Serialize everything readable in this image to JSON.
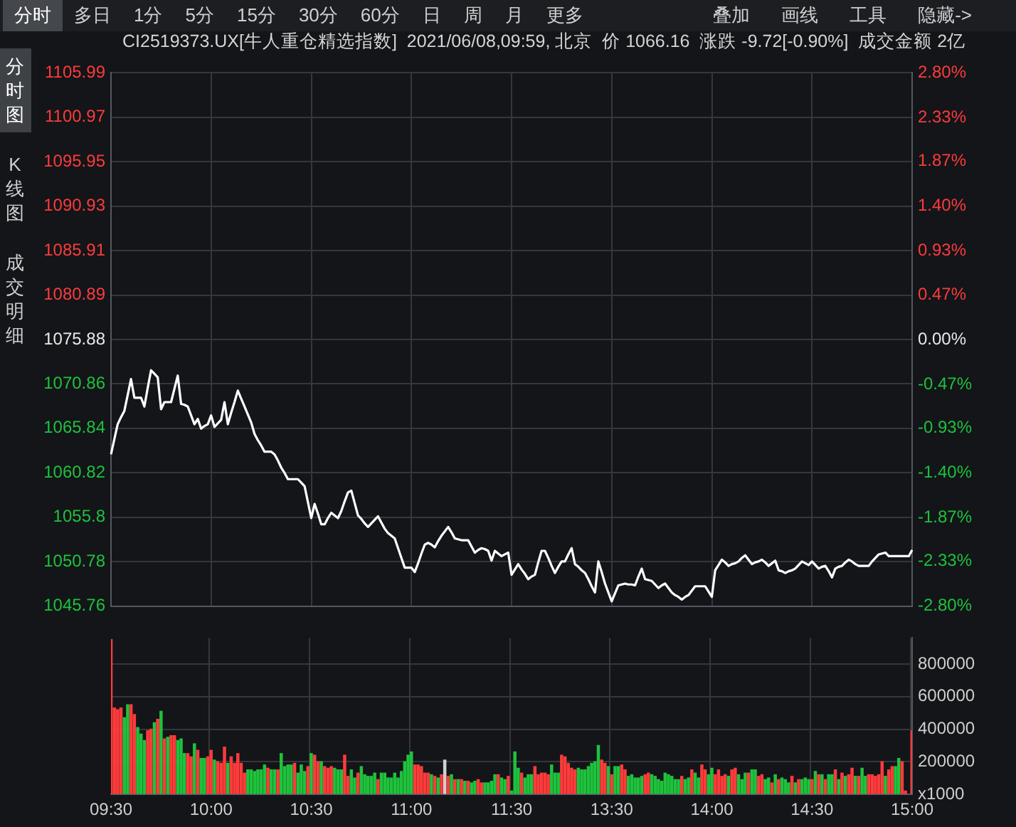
{
  "chart_data": [
    {
      "type": "line",
      "title": "CI2519373.UX[牛人重仓精选指数]  2021/06/08,09:59, 北京  价 1066.16  涨跌 -9.72[-0.90%]  成交金额 2亿",
      "categories": [
        null,
        null,
        null,
        null,
        null,
        null,
        null,
        null,
        null,
        null,
        null,
        null,
        null,
        null,
        null,
        null,
        null,
        null,
        null,
        null,
        null,
        null,
        null,
        null,
        null,
        null,
        null,
        null,
        null,
        null,
        null,
        null,
        null,
        null,
        null,
        null,
        null,
        null,
        null,
        null,
        null,
        null,
        null,
        null,
        null,
        null,
        null,
        null,
        null,
        null,
        null,
        null,
        null,
        null,
        null,
        null,
        null,
        null,
        null,
        null,
        null,
        null,
        null,
        null,
        null,
        null,
        null,
        null,
        null,
        null,
        null,
        null,
        null,
        null,
        null,
        null,
        null,
        null,
        null,
        null,
        null,
        null,
        null,
        null,
        null,
        null,
        null,
        null,
        null,
        null,
        null,
        null,
        null,
        null,
        null,
        null,
        null,
        null,
        null,
        null,
        null,
        null,
        null,
        null,
        null,
        null,
        null,
        null,
        null,
        null,
        null,
        null,
        null,
        null,
        null,
        null,
        null,
        null,
        null,
        null,
        null,
        null,
        null,
        null,
        null,
        null,
        null,
        null,
        null,
        null,
        null,
        null,
        null,
        null,
        null,
        null,
        null,
        null,
        null,
        null,
        null,
        null,
        null,
        null,
        null,
        null,
        null,
        null,
        null,
        null,
        null,
        null,
        null,
        null,
        null,
        null,
        null,
        null,
        null,
        null,
        null,
        null,
        null,
        null,
        null,
        null,
        null,
        null,
        null,
        null,
        null,
        null,
        null,
        null,
        null,
        null,
        null,
        null,
        null,
        null,
        null,
        null,
        null,
        null,
        null,
        null,
        null,
        null,
        null,
        null,
        null,
        null,
        null,
        null,
        null,
        null,
        null,
        null,
        null,
        null,
        null,
        null,
        null,
        null,
        null,
        null,
        null,
        null,
        null,
        null,
        null,
        null,
        null,
        null,
        null,
        null,
        null,
        null,
        null,
        null,
        null,
        null,
        null,
        null,
        null,
        null,
        null,
        null,
        null,
        null,
        null,
        null,
        null,
        null,
        null,
        null,
        null,
        null,
        null,
        null,
        null
      ],
      "series": [
        {
          "color": "#ffffff",
          "values": [
            1062.9,
            1064.6,
            1066.3,
            1067.1,
            1067.8,
            1069.6,
            1071.4,
            1069.3,
            1069.3,
            1069.3,
            1068.3,
            1070.4,
            1072.4,
            1072.0,
            1071.6,
            1068.0,
            1068.8,
            1068.8,
            1068.8,
            1070.3,
            1071.8,
            1068.6,
            1068.5,
            1068.3,
            1067.3,
            1066.3,
            1066.9,
            1065.8,
            1066.1,
            1066.3,
            1067.3,
            1066.0,
            1066.4,
            1066.8,
            1068.8,
            1066.3,
            1067.6,
            1068.8,
            1070.1,
            1069.2,
            1068.3,
            1067.4,
            1066.5,
            1065.2,
            1064.5,
            1063.9,
            1063.2,
            1063.2,
            1063.2,
            1062.9,
            1062.2,
            1061.4,
            1060.8,
            1060.1,
            1060.1,
            1060.1,
            1060.1,
            1059.7,
            1059.3,
            1057.5,
            1055.7,
            1057.3,
            1056.2,
            1055.0,
            1055.0,
            1055.7,
            1056.3,
            1056.0,
            1055.7,
            1056.5,
            1057.6,
            1058.6,
            1058.8,
            1057.4,
            1056.0,
            1055.6,
            1055.1,
            1054.7,
            1055.1,
            1055.5,
            1055.9,
            1055.2,
            1054.5,
            1054.0,
            1053.7,
            1053.4,
            1052.3,
            1051.2,
            1050.1,
            1050.1,
            1050.1,
            1049.6,
            1050.6,
            1051.7,
            1052.7,
            1052.9,
            1052.7,
            1052.4,
            1053.1,
            1053.7,
            1054.2,
            1054.7,
            1054.1,
            1053.4,
            1053.3,
            1053.2,
            1053.2,
            1053.2,
            1052.5,
            1051.8,
            1052.1,
            1052.3,
            1052.2,
            1052.0,
            1050.9,
            1052.0,
            1051.7,
            1051.4,
            1051.6,
            1051.8,
            1049.3,
            1049.9,
            1050.5,
            1049.9,
            1049.4,
            1048.8,
            1049.1,
            1049.3,
            1050.7,
            1052.0,
            1052.0,
            1051.2,
            1050.3,
            1049.5,
            1050.2,
            1050.8,
            1050.8,
            1051.6,
            1052.3,
            1050.5,
            1050.2,
            1049.8,
            1049.5,
            1048.8,
            1048.0,
            1047.3,
            1050.8,
            1049.6,
            1048.3,
            1047.3,
            1046.3,
            1047.2,
            1048.1,
            1048.2,
            1048.3,
            1048.2,
            1048.2,
            1048.1,
            1049.1,
            1050.0,
            1048.8,
            1048.7,
            1048.6,
            1048.2,
            1047.8,
            1048.1,
            1048.3,
            1047.8,
            1047.3,
            1047.0,
            1046.8,
            1046.5,
            1046.8,
            1047.0,
            1047.5,
            1048.0,
            1048.0,
            1048.0,
            1048.0,
            1047.4,
            1046.8,
            1049.8,
            1050.4,
            1051.0,
            1050.7,
            1050.3,
            1050.5,
            1050.6,
            1050.8,
            1051.2,
            1051.5,
            1051.0,
            1050.5,
            1050.7,
            1050.8,
            1051.0,
            1050.7,
            1050.3,
            1050.6,
            1050.9,
            1049.8,
            1049.7,
            1049.5,
            1049.7,
            1049.8,
            1050.0,
            1050.4,
            1050.8,
            1050.6,
            1050.4,
            1050.8,
            1050.4,
            1050.0,
            1050.2,
            1050.3,
            1049.7,
            1049.0,
            1050.0,
            1050.2,
            1050.3,
            1050.7,
            1051.0,
            1050.8,
            1050.5,
            1050.3,
            1050.3,
            1050.3,
            1050.3,
            1050.8,
            1051.2,
            1051.6,
            1051.7,
            1051.8,
            1051.4,
            1051.4,
            1051.4,
            1051.4,
            1051.4,
            1051.4,
            1051.4,
            1052.1
          ]
        }
      ],
      "ylim": [
        1045.76,
        1105.99
      ],
      "yticks": [
        1045.76,
        1050.78,
        1055.8,
        1060.82,
        1065.84,
        1070.86,
        1075.88,
        1080.89,
        1085.91,
        1090.93,
        1095.95,
        1100.97,
        1105.99
      ],
      "y2lim": [
        -2.8,
        2.8
      ],
      "y2ticks": [
        {
          "value": -2.8,
          "label": "-2.80%"
        },
        {
          "value": -2.33,
          "label": "-2.33%"
        },
        {
          "value": -1.87,
          "label": "-1.87%"
        },
        {
          "value": -1.4,
          "label": "-1.40%"
        },
        {
          "value": -0.93,
          "label": "-0.93%"
        },
        {
          "value": -0.47,
          "label": "-0.47%"
        },
        {
          "value": 0,
          "label": "0.00%"
        },
        {
          "value": 0.47,
          "label": "0.47%"
        },
        {
          "value": 0.93,
          "label": "0.93%"
        },
        {
          "value": 1.4,
          "label": "1.40%"
        },
        {
          "value": 1.87,
          "label": "1.87%"
        },
        {
          "value": 2.33,
          "label": "2.33%"
        },
        {
          "value": 2.8,
          "label": "2.80%"
        }
      ],
      "tick_labels": "y",
      "grid": true
    },
    {
      "type": "bar",
      "categories": [
        "09:30",
        null,
        null,
        null,
        null,
        null,
        null,
        null,
        null,
        null,
        null,
        null,
        null,
        null,
        null,
        null,
        null,
        null,
        null,
        null,
        null,
        null,
        null,
        null,
        null,
        null,
        null,
        null,
        null,
        null,
        "10:00",
        null,
        null,
        null,
        null,
        null,
        null,
        null,
        null,
        null,
        null,
        null,
        null,
        null,
        null,
        null,
        null,
        null,
        null,
        null,
        null,
        null,
        null,
        null,
        null,
        null,
        null,
        null,
        null,
        null,
        "10:30",
        null,
        null,
        null,
        null,
        null,
        null,
        null,
        null,
        null,
        null,
        null,
        null,
        null,
        null,
        null,
        null,
        null,
        null,
        null,
        null,
        null,
        null,
        null,
        null,
        null,
        null,
        null,
        null,
        null,
        "11:00",
        null,
        null,
        null,
        null,
        null,
        null,
        null,
        null,
        null,
        null,
        null,
        null,
        null,
        null,
        null,
        null,
        null,
        null,
        null,
        null,
        null,
        null,
        null,
        null,
        null,
        null,
        null,
        null,
        null,
        "11:30",
        null,
        null,
        null,
        null,
        null,
        null,
        null,
        null,
        null,
        null,
        null,
        null,
        null,
        null,
        null,
        null,
        null,
        null,
        null,
        null,
        null,
        null,
        null,
        null,
        null,
        null,
        null,
        null,
        null,
        "13:30",
        null,
        null,
        null,
        null,
        null,
        null,
        null,
        null,
        null,
        null,
        null,
        null,
        null,
        null,
        null,
        null,
        null,
        null,
        null,
        null,
        null,
        null,
        null,
        null,
        null,
        null,
        null,
        null,
        null,
        "14:00",
        null,
        null,
        null,
        null,
        null,
        null,
        null,
        null,
        null,
        null,
        null,
        null,
        null,
        null,
        null,
        null,
        null,
        null,
        null,
        null,
        null,
        null,
        null,
        null,
        null,
        null,
        null,
        null,
        null,
        "14:30",
        null,
        null,
        null,
        null,
        null,
        null,
        null,
        null,
        null,
        null,
        null,
        null,
        null,
        null,
        null,
        null,
        null,
        null,
        null,
        null,
        null,
        null,
        null,
        null,
        null,
        null,
        null,
        null,
        null,
        "15:00"
      ],
      "series": [
        {
          "axis": "y2",
          "values": [
            950000,
            530000,
            520000,
            530000,
            470000,
            550000,
            550000,
            490000,
            410000,
            370000,
            330000,
            390000,
            400000,
            440000,
            460000,
            510000,
            340000,
            350000,
            360000,
            360000,
            330000,
            340000,
            250000,
            250000,
            230000,
            310000,
            270000,
            220000,
            220000,
            230000,
            270000,
            210000,
            200000,
            190000,
            290000,
            190000,
            230000,
            190000,
            250000,
            190000,
            130000,
            150000,
            150000,
            140000,
            150000,
            150000,
            180000,
            160000,
            150000,
            150000,
            150000,
            250000,
            170000,
            180000,
            180000,
            190000,
            130000,
            180000,
            140000,
            170000,
            250000,
            240000,
            200000,
            200000,
            170000,
            160000,
            170000,
            160000,
            150000,
            150000,
            240000,
            110000,
            150000,
            100000,
            130000,
            170000,
            120000,
            110000,
            110000,
            130000,
            90000,
            130000,
            130000,
            100000,
            100000,
            130000,
            100000,
            140000,
            200000,
            240000,
            260000,
            180000,
            180000,
            170000,
            130000,
            130000,
            120000,
            110000,
            100000,
            120000,
            210000,
            110000,
            120000,
            90000,
            90000,
            90000,
            80000,
            80000,
            70000,
            80000,
            90000,
            70000,
            70000,
            70000,
            80000,
            120000,
            120000,
            100000,
            90000,
            110000,
            20000,
            260000,
            160000,
            130000,
            100000,
            120000,
            120000,
            170000,
            120000,
            130000,
            130000,
            120000,
            180000,
            130000,
            130000,
            240000,
            230000,
            190000,
            160000,
            150000,
            160000,
            150000,
            150000,
            170000,
            190000,
            200000,
            300000,
            210000,
            190000,
            170000,
            120000,
            170000,
            170000,
            180000,
            150000,
            110000,
            120000,
            100000,
            100000,
            110000,
            120000,
            130000,
            120000,
            110000,
            90000,
            80000,
            130000,
            120000,
            110000,
            90000,
            90000,
            110000,
            90000,
            100000,
            150000,
            130000,
            100000,
            180000,
            150000,
            120000,
            160000,
            120000,
            150000,
            110000,
            120000,
            110000,
            150000,
            160000,
            120000,
            90000,
            130000,
            130000,
            150000,
            150000,
            110000,
            120000,
            90000,
            100000,
            70000,
            120000,
            90000,
            100000,
            90000,
            70000,
            110000,
            70000,
            90000,
            90000,
            100000,
            90000,
            90000,
            140000,
            120000,
            120000,
            90000,
            120000,
            120000,
            150000,
            90000,
            130000,
            110000,
            120000,
            160000,
            110000,
            110000,
            160000,
            110000,
            120000,
            120000,
            110000,
            120000,
            200000,
            110000,
            150000,
            170000,
            170000,
            220000,
            200000,
            20000,
            null,
            390000
          ],
          "colors": [
            "#ff3b3b",
            "#ff3b3b",
            "#ff3b3b",
            "#ff3b3b",
            "#1fc23c",
            "#1fc23c",
            "#ff3b3b",
            "#ff3b3b",
            "#1fc23c",
            "#1fc23c",
            "#1fc23c",
            "#ff3b3b",
            "#ff3b3b",
            "#1fc23c",
            "#ff3b3b",
            "#1fc23c",
            "#ff3b3b",
            "#1fc23c",
            "#ff3b3b",
            "#ff3b3b",
            "#1fc23c",
            "#1fc23c",
            "#1fc23c",
            "#ff3b3b",
            "#ff3b3b",
            "#1fc23c",
            "#ff3b3b",
            "#1fc23c",
            "#1fc23c",
            "#ff3b3b",
            "#ff3b3b",
            "#1fc23c",
            "#ff3b3b",
            "#ff3b3b",
            "#ff3b3b",
            "#1fc23c",
            "#ff3b3b",
            "#ff3b3b",
            "#ff3b3b",
            "#ff3b3b",
            "#ff3b3b",
            "#1fc23c",
            "#1fc23c",
            "#1fc23c",
            "#1fc23c",
            "#1fc23c",
            "#1fc23c",
            "#ff3b3b",
            "#1fc23c",
            "#1fc23c",
            "#ff3b3b",
            "#1fc23c",
            "#1fc23c",
            "#1fc23c",
            "#1fc23c",
            "#ff3b3b",
            "#1fc23c",
            "#1fc23c",
            "#1fc23c",
            "#ff3b3b",
            "#1fc23c",
            "#ff3b3b",
            "#ff3b3b",
            "#1fc23c",
            "#ff3b3b",
            "#ff3b3b",
            "#ff3b3b",
            "#1fc23c",
            "#1fc23c",
            "#1fc23c",
            "#ff3b3b",
            "#ff3b3b",
            "#1fc23c",
            "#1fc23c",
            "#ff3b3b",
            "#1fc23c",
            "#1fc23c",
            "#1fc23c",
            "#1fc23c",
            "#1fc23c",
            "#ff3b3b",
            "#1fc23c",
            "#1fc23c",
            "#1fc23c",
            "#1fc23c",
            "#1fc23c",
            "#1fc23c",
            "#1fc23c",
            "#1fc23c",
            "#1fc23c",
            "#1fc23c",
            "#ff3b3b",
            "#ff3b3b",
            "#ff3b3b",
            "#ff3b3b",
            "#ff3b3b",
            "#1fc23c",
            "#ff3b3b",
            "#1fc23c",
            "#ff3b3b",
            "#d0d0d0",
            "#ff3b3b",
            "#1fc23c",
            "#ff3b3b",
            "#1fc23c",
            "#ff3b3b",
            "#1fc23c",
            "#ff3b3b",
            "#1fc23c",
            "#1fc23c",
            "#ff3b3b",
            "#ff3b3b",
            "#1fc23c",
            "#1fc23c",
            "#1fc23c",
            "#1fc23c",
            "#ff3b3b",
            "#1fc23c",
            "#1fc23c",
            "#ff3b3b",
            "#1fc23c",
            "#1fc23c",
            "#1fc23c",
            "#ff3b3b",
            "#1fc23c",
            "#1fc23c",
            "#1fc23c",
            "#ff3b3b",
            "#ff3b3b",
            "#ff3b3b",
            "#ff3b3b",
            "#ff3b3b",
            "#1fc23c",
            "#1fc23c",
            "#1fc23c",
            "#ff3b3b",
            "#ff3b3b",
            "#ff3b3b",
            "#ff3b3b",
            "#ff3b3b",
            "#1fc23c",
            "#1fc23c",
            "#1fc23c",
            "#1fc23c",
            "#1fc23c",
            "#1fc23c",
            "#1fc23c",
            "#ff3b3b",
            "#ff3b3b",
            "#1fc23c",
            "#ff3b3b",
            "#1fc23c",
            "#1fc23c",
            "#ff3b3b",
            "#ff3b3b",
            "#1fc23c",
            "#1fc23c",
            "#1fc23c",
            "#1fc23c",
            "#1fc23c",
            "#ff3b3b",
            "#ff3b3b",
            "#1fc23c",
            "#1fc23c",
            "#1fc23c",
            "#1fc23c",
            "#1fc23c",
            "#1fc23c",
            "#1fc23c",
            "#1fc23c",
            "#1fc23c",
            "#ff3b3b",
            "#1fc23c",
            "#1fc23c",
            "#ff3b3b",
            "#1fc23c",
            "#1fc23c",
            "#ff3b3b",
            "#ff3b3b",
            "#1fc23c",
            "#1fc23c",
            "#ff3b3b",
            "#ff3b3b",
            "#ff3b3b",
            "#ff3b3b",
            "#1fc23c",
            "#ff3b3b",
            "#ff3b3b",
            "#1fc23c",
            "#1fc23c",
            "#1fc23c",
            "#ff3b3b",
            "#1fc23c",
            "#1fc23c",
            "#ff3b3b",
            "#ff3b3b",
            "#1fc23c",
            "#1fc23c",
            "#ff3b3b",
            "#1fc23c",
            "#ff3b3b",
            "#1fc23c",
            "#1fc23c",
            "#1fc23c",
            "#ff3b3b",
            "#1fc23c",
            "#ff3b3b",
            "#1fc23c",
            "#1fc23c",
            "#1fc23c",
            "#ff3b3b",
            "#1fc23c",
            "#ff3b3b",
            "#1fc23c",
            "#ff3b3b",
            "#1fc23c",
            "#1fc23c",
            "#ff3b3b",
            "#1fc23c",
            "#ff3b3b",
            "#1fc23c",
            "#ff3b3b",
            "#ff3b3b",
            "#1fc23c",
            "#ff3b3b",
            "#1fc23c",
            "#1fc23c",
            "#ff3b3b",
            "#ff3b3b",
            "#ff3b3b",
            "#ff3b3b",
            "#ff3b3b",
            "#1fc23c",
            "#ff3b3b",
            "#ff3b3b",
            "#1fc23c",
            "#1fc23c",
            "#ff3b3b",
            "#ff3b3b",
            "#1fc23c",
            "#ff3b3b"
          ]
        }
      ],
      "y2lim": [
        0,
        960000
      ],
      "y2ticks": [
        {
          "value": 0,
          "label": "x1000"
        },
        200000,
        400000,
        600000,
        800000
      ],
      "grid": true
    },
    {
      "type": "other",
      "annotations": [
        "分时",
        "多日",
        "1分",
        "5分",
        "15分",
        "30分",
        "60分",
        "日",
        "周",
        "月",
        "更多"
      ]
    },
    {
      "type": "other",
      "annotations": [
        "叠加",
        "画线",
        "工具",
        "隐藏->"
      ]
    },
    {
      "type": "other",
      "annotations": [
        "分时图",
        "K线图",
        "成交明细"
      ]
    }
  ]
}
